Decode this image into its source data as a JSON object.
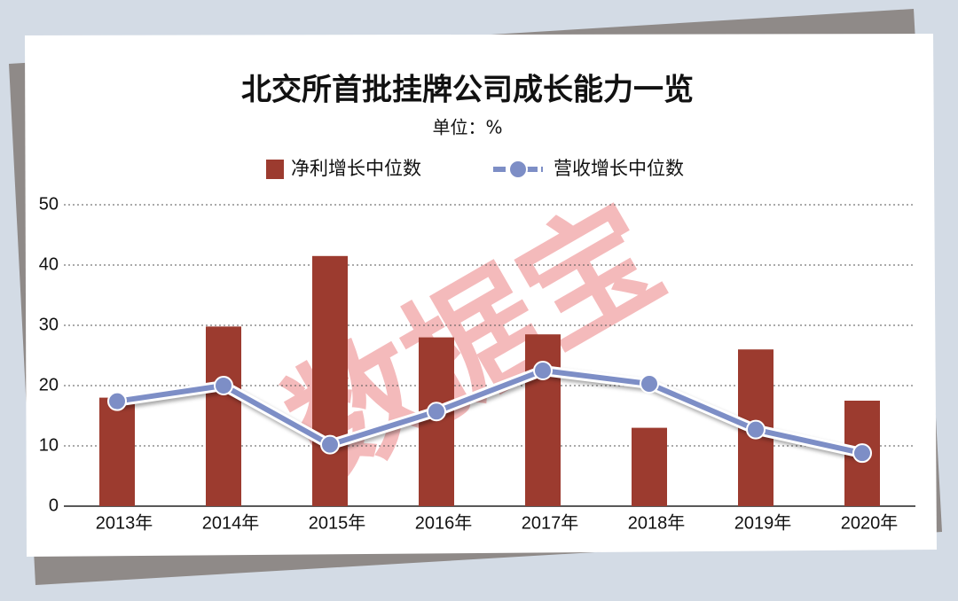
{
  "chart_data": {
    "type": "bar-line",
    "title": "北交所首批挂牌公司成长能力一览",
    "subtitle": "单位：%",
    "watermark": "数据宝",
    "categories": [
      "2013年",
      "2014年",
      "2015年",
      "2016年",
      "2017年",
      "2018年",
      "2019年",
      "2020年"
    ],
    "series": [
      {
        "name": "净利增长中位数",
        "type": "bar",
        "color": "#9c3b2f",
        "values": [
          18,
          29.8,
          41.5,
          28,
          28.5,
          13,
          26,
          17.5
        ]
      },
      {
        "name": "营收增长中位数",
        "type": "line",
        "color": "#7d8ec6",
        "values": [
          17.4,
          20,
          10.2,
          15.7,
          22.5,
          20.3,
          12.7,
          8.8
        ]
      }
    ],
    "ylim": [
      0,
      50
    ],
    "yticks": [
      0,
      10,
      20,
      30,
      40,
      50
    ],
    "grid": true
  }
}
